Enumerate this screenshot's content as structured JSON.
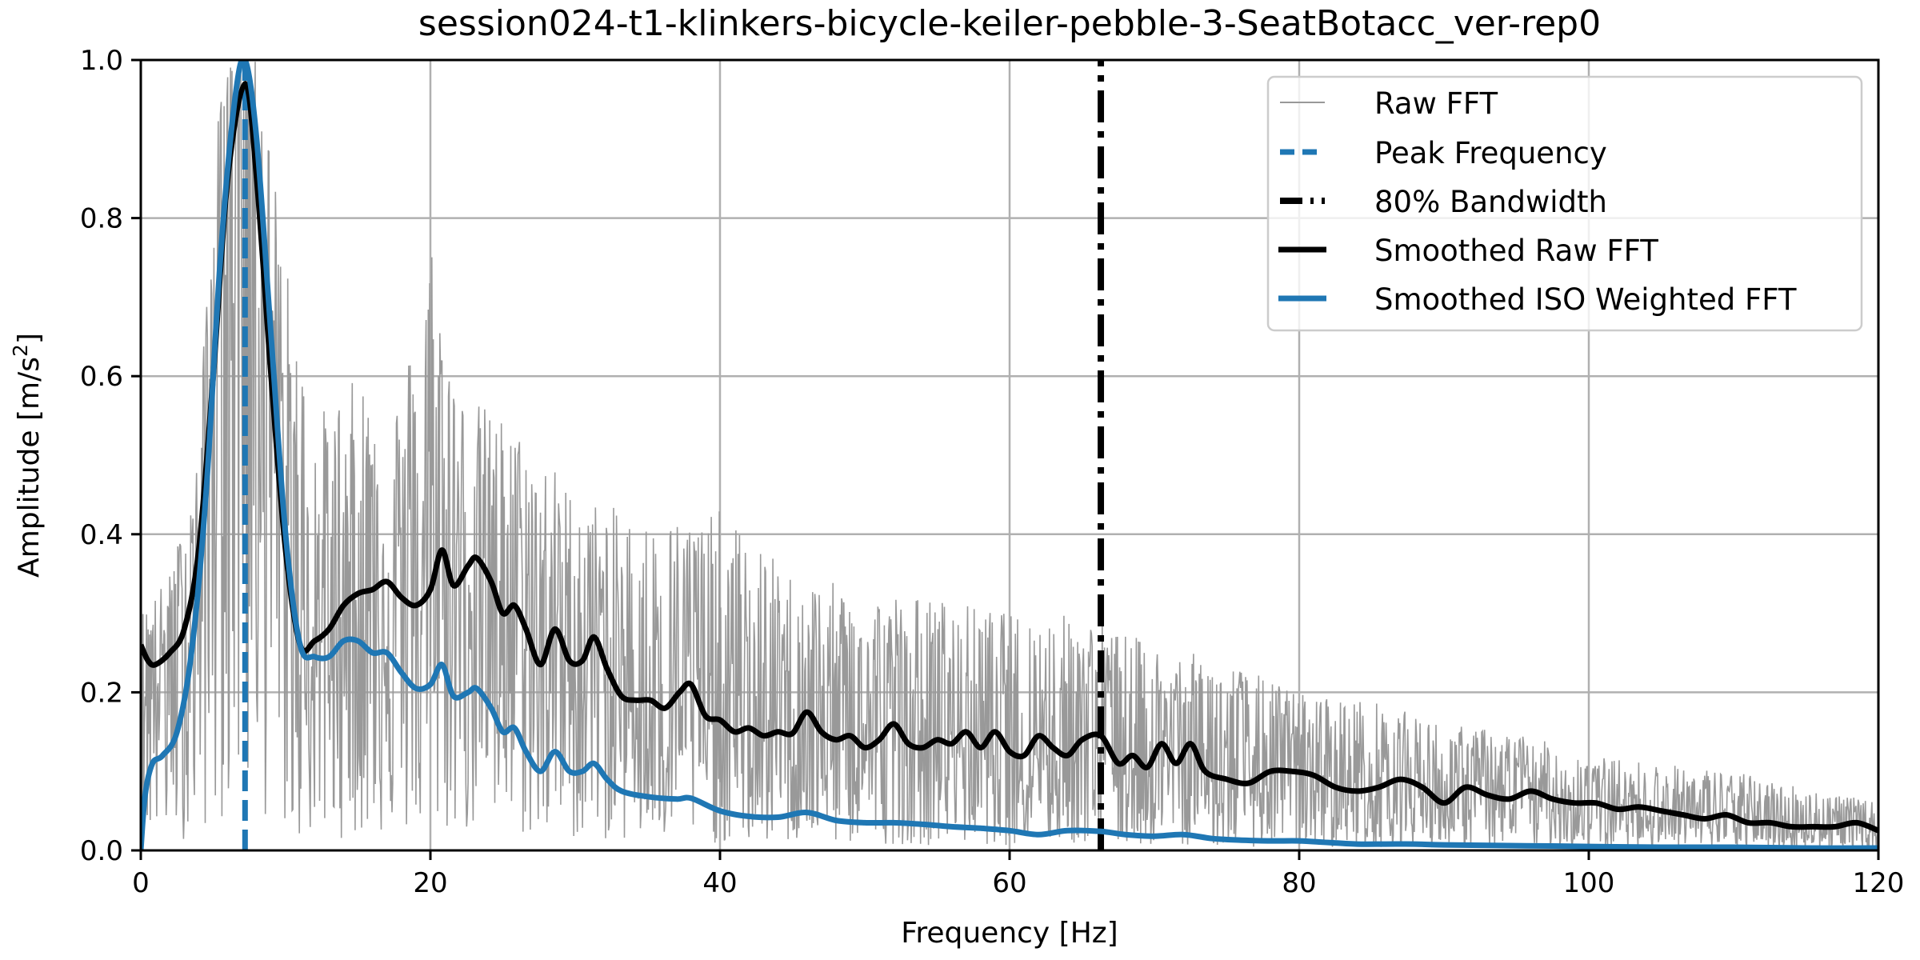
{
  "chart_data": {
    "type": "line",
    "title": "session024-t1-klinkers-bicycle-keiler-pebble-3-SeatBotacc_ver-rep0",
    "xlabel": "Frequency [Hz]",
    "ylabel": "Amplitude [m/s²]",
    "ylabel_base": "Amplitude [m/s",
    "ylabel_sup": "2",
    "ylabel_end": "]",
    "xlim": [
      0,
      120
    ],
    "ylim": [
      0,
      1.0
    ],
    "x_ticks": [
      0,
      20,
      40,
      60,
      80,
      100,
      120
    ],
    "y_ticks": [
      0.0,
      0.2,
      0.4,
      0.6,
      0.8,
      1.0
    ],
    "x_tick_labels": [
      "0",
      "20",
      "40",
      "60",
      "80",
      "100",
      "120"
    ],
    "y_tick_labels": [
      "0.0",
      "0.2",
      "0.4",
      "0.6",
      "0.8",
      "1.0"
    ],
    "grid": true,
    "legend_position": "top-right",
    "legend": [
      {
        "label": "Raw FFT",
        "color": "#999999",
        "style": "thin-solid"
      },
      {
        "label": "Peak Frequency",
        "color": "#1f77b4",
        "style": "dashed"
      },
      {
        "label": "80% Bandwidth",
        "color": "#000000",
        "style": "dash-dot"
      },
      {
        "label": "Smoothed Raw FFT",
        "color": "#000000",
        "style": "thick-solid"
      },
      {
        "label": "Smoothed ISO Weighted FFT",
        "color": "#1f77b4",
        "style": "thick-solid"
      }
    ],
    "vlines": {
      "peak_frequency_hz": 7.2,
      "bandwidth_80_hz": 66.3
    },
    "raw_fft_envelope": {
      "note": "dense noisy raw spectrum, approximate upper envelope per Hz",
      "x": [
        0,
        2,
        4,
        5,
        6,
        7,
        8,
        9,
        10,
        12,
        15,
        18,
        20,
        22,
        25,
        28,
        30,
        35,
        40,
        45,
        50,
        55,
        60,
        65,
        70,
        75,
        80,
        85,
        90,
        95,
        100,
        105,
        110,
        115,
        120
      ],
      "upper": [
        0.3,
        0.35,
        0.5,
        0.9,
        1.0,
        1.0,
        1.0,
        0.9,
        0.75,
        0.55,
        0.6,
        0.58,
        0.8,
        0.58,
        0.55,
        0.5,
        0.45,
        0.42,
        0.43,
        0.35,
        0.33,
        0.32,
        0.3,
        0.3,
        0.26,
        0.24,
        0.2,
        0.19,
        0.16,
        0.15,
        0.12,
        0.11,
        0.1,
        0.08,
        0.06
      ]
    },
    "series": [
      {
        "name": "Smoothed Raw FFT",
        "color": "#000000",
        "x": [
          0,
          0.5,
          1,
          2,
          3,
          4,
          5,
          6,
          7.2,
          8,
          9,
          10,
          11,
          12,
          13,
          14,
          15,
          16,
          17,
          18,
          19,
          20,
          20.8,
          21.6,
          22.6,
          23.2,
          24.2,
          25,
          25.8,
          26.6,
          27.6,
          28.6,
          29.6,
          30.5,
          31.3,
          32.2,
          33.2,
          34.2,
          35.2,
          36.2,
          37.2,
          38,
          39,
          40,
          41,
          42,
          43,
          44,
          45,
          46,
          47,
          48,
          49,
          50,
          51,
          52,
          53,
          54,
          55,
          56,
          57,
          58,
          59,
          60,
          61,
          62,
          63,
          64,
          65,
          66.3,
          67.5,
          68.5,
          69.5,
          70.5,
          71.5,
          72.5,
          73.5,
          75,
          76.5,
          78,
          79.5,
          81,
          82.5,
          84,
          85.5,
          87,
          88.5,
          90,
          91.5,
          93,
          94.5,
          96,
          97.5,
          99,
          100.5,
          102,
          103.5,
          105,
          106.5,
          108,
          109.5,
          111,
          112.5,
          114,
          115.5,
          117,
          118.5,
          120
        ],
        "values": [
          0.26,
          0.24,
          0.235,
          0.25,
          0.28,
          0.38,
          0.6,
          0.85,
          0.97,
          0.85,
          0.6,
          0.38,
          0.26,
          0.265,
          0.28,
          0.31,
          0.325,
          0.33,
          0.34,
          0.32,
          0.31,
          0.33,
          0.38,
          0.335,
          0.36,
          0.37,
          0.34,
          0.3,
          0.31,
          0.28,
          0.235,
          0.28,
          0.24,
          0.24,
          0.27,
          0.23,
          0.195,
          0.19,
          0.19,
          0.18,
          0.2,
          0.21,
          0.17,
          0.165,
          0.15,
          0.155,
          0.145,
          0.15,
          0.148,
          0.175,
          0.15,
          0.14,
          0.145,
          0.13,
          0.14,
          0.16,
          0.135,
          0.13,
          0.14,
          0.135,
          0.15,
          0.13,
          0.15,
          0.125,
          0.12,
          0.145,
          0.13,
          0.12,
          0.14,
          0.145,
          0.11,
          0.12,
          0.105,
          0.135,
          0.11,
          0.135,
          0.1,
          0.09,
          0.085,
          0.1,
          0.1,
          0.095,
          0.08,
          0.075,
          0.08,
          0.09,
          0.08,
          0.06,
          0.08,
          0.07,
          0.065,
          0.075,
          0.065,
          0.06,
          0.06,
          0.052,
          0.055,
          0.05,
          0.045,
          0.04,
          0.045,
          0.035,
          0.035,
          0.03,
          0.03,
          0.03,
          0.035,
          0.025
        ]
      },
      {
        "name": "Smoothed ISO Weighted FFT",
        "color": "#1f77b4",
        "x": [
          0,
          0.3,
          0.8,
          1.5,
          2.5,
          3.5,
          4.5,
          5.5,
          6.5,
          7.2,
          8,
          9,
          10,
          11,
          12,
          13,
          14,
          15,
          16,
          17,
          18,
          19,
          20,
          20.8,
          21.6,
          22.6,
          23.2,
          24.2,
          25,
          25.8,
          26.6,
          27.6,
          28.6,
          29.6,
          30.5,
          31.3,
          32.2,
          33.2,
          35,
          37,
          38,
          40,
          42,
          44,
          46,
          48,
          50,
          52,
          54,
          56,
          58,
          60,
          62,
          64,
          66.3,
          68,
          70,
          72,
          74,
          76,
          78,
          80,
          82,
          84,
          86,
          88,
          90,
          95,
          100,
          105,
          110,
          115,
          120
        ],
        "values": [
          0.0,
          0.07,
          0.11,
          0.12,
          0.15,
          0.25,
          0.45,
          0.75,
          0.95,
          1.0,
          0.9,
          0.65,
          0.4,
          0.26,
          0.245,
          0.245,
          0.265,
          0.265,
          0.25,
          0.25,
          0.225,
          0.205,
          0.21,
          0.235,
          0.195,
          0.2,
          0.205,
          0.18,
          0.15,
          0.155,
          0.125,
          0.1,
          0.125,
          0.1,
          0.1,
          0.11,
          0.09,
          0.075,
          0.068,
          0.065,
          0.066,
          0.05,
          0.043,
          0.042,
          0.048,
          0.038,
          0.035,
          0.035,
          0.033,
          0.03,
          0.028,
          0.025,
          0.02,
          0.025,
          0.024,
          0.02,
          0.018,
          0.02,
          0.015,
          0.013,
          0.012,
          0.012,
          0.01,
          0.008,
          0.008,
          0.008,
          0.007,
          0.006,
          0.005,
          0.004,
          0.004,
          0.003,
          0.003
        ]
      }
    ]
  }
}
